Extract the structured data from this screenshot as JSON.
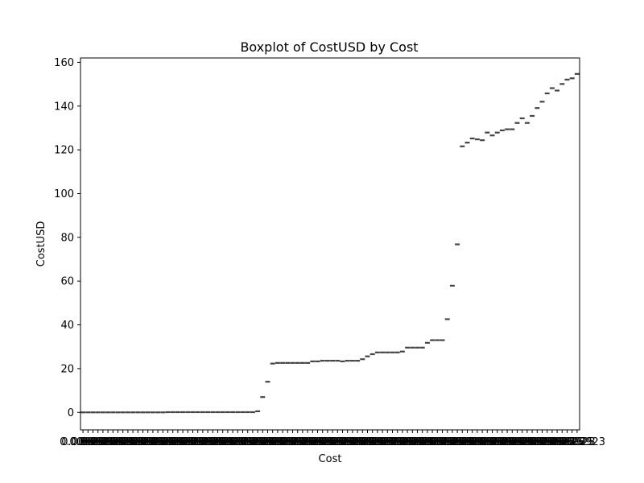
{
  "chart_data": {
    "type": "box",
    "title": "Boxplot of CostUSD by Cost",
    "xlabel": "Cost",
    "ylabel": "CostUSD",
    "ylim": [
      -8,
      162
    ],
    "yticks": [
      0,
      20,
      40,
      60,
      80,
      100,
      120,
      140,
      160
    ],
    "grid": false,
    "legend": "none",
    "x_tick_labels_visible": [
      "0.00025",
      "0.0002923"
    ],
    "values": [
      0.0,
      0.0,
      0.0,
      0.0,
      0.0,
      0.0,
      0.0,
      0.0,
      0.0,
      0.0,
      0.0,
      0.0,
      0.0,
      0.0,
      0.0,
      0.0,
      0.0,
      0.1,
      0.1,
      0.1,
      0.1,
      0.1,
      0.1,
      0.1,
      0.1,
      0.1,
      0.1,
      0.1,
      0.1,
      0.1,
      0.1,
      0.1,
      0.1,
      0.1,
      0.1,
      0.5,
      7.0,
      14.0,
      22.3,
      22.6,
      22.6,
      22.6,
      22.6,
      22.6,
      22.6,
      22.6,
      23.3,
      23.3,
      23.6,
      23.6,
      23.6,
      23.6,
      23.3,
      23.6,
      23.6,
      23.6,
      24.3,
      25.6,
      26.6,
      27.4,
      27.4,
      27.4,
      27.4,
      27.4,
      27.8,
      29.6,
      29.6,
      29.6,
      29.6,
      31.8,
      33.0,
      33.0,
      33.0,
      42.6,
      57.9,
      76.8,
      121.6,
      123.3,
      125.2,
      124.8,
      124.4,
      127.9,
      126.6,
      127.9,
      128.9,
      129.4,
      129.4,
      132.3,
      134.4,
      132.3,
      135.5,
      139.1,
      142.0,
      145.8,
      148.2,
      147.1,
      150.1,
      152.1,
      152.7,
      154.7
    ],
    "box_color": "#4c72b0",
    "line_color": "#444444"
  }
}
